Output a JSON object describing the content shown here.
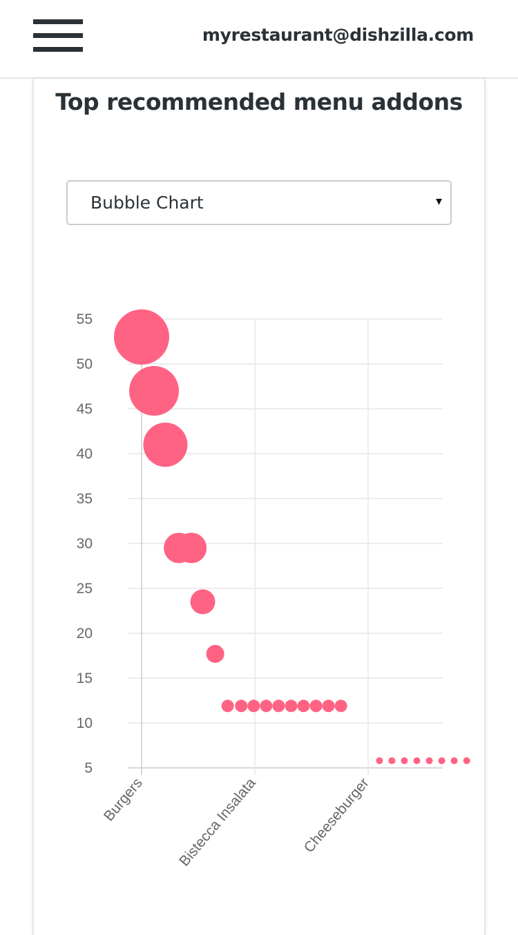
{
  "header": {
    "menu_icon": "hamburger-menu-icon",
    "email": "myrestaurant@dishzilla.com"
  },
  "card": {
    "title": "Top recommended menu addons"
  },
  "chart_selector": {
    "selected": "Bubble Chart",
    "arrow": "▾"
  },
  "colors": {
    "bubble": "#ff6384",
    "grid": "#e5e5e5",
    "text": "#2a3238"
  },
  "chart_data": {
    "type": "scatter",
    "title": "",
    "xlabel": "",
    "ylabel": "",
    "x_ticks": [
      "Burgers",
      "Bistecca Insalata",
      "Cheeseburger"
    ],
    "ylim": [
      5,
      55
    ],
    "y_ticks": [
      5,
      10,
      15,
      20,
      25,
      30,
      35,
      40,
      45,
      50,
      55
    ],
    "grid": true,
    "legend": "none",
    "series": [
      {
        "points": [
          {
            "x": 0.0,
            "y": 53,
            "r": 40
          },
          {
            "x": 0.11,
            "y": 47,
            "r": 36
          },
          {
            "x": 0.21,
            "y": 41,
            "r": 32
          },
          {
            "x": 0.33,
            "y": 29.5,
            "r": 22
          },
          {
            "x": 0.44,
            "y": 29.5,
            "r": 22
          },
          {
            "x": 0.54,
            "y": 23.5,
            "r": 18
          },
          {
            "x": 0.65,
            "y": 17.7,
            "r": 13
          },
          {
            "x": 0.76,
            "y": 11.9,
            "r": 9
          },
          {
            "x": 0.88,
            "y": 11.9,
            "r": 9
          },
          {
            "x": 0.99,
            "y": 11.9,
            "r": 9
          },
          {
            "x": 1.1,
            "y": 11.9,
            "r": 9
          },
          {
            "x": 1.21,
            "y": 11.9,
            "r": 9
          },
          {
            "x": 1.32,
            "y": 11.9,
            "r": 9
          },
          {
            "x": 1.43,
            "y": 11.9,
            "r": 9
          },
          {
            "x": 1.54,
            "y": 11.9,
            "r": 9
          },
          {
            "x": 1.65,
            "y": 11.9,
            "r": 9
          },
          {
            "x": 1.76,
            "y": 11.9,
            "r": 9
          },
          {
            "x": 2.1,
            "y": 5.8,
            "r": 5
          },
          {
            "x": 2.21,
            "y": 5.8,
            "r": 5
          },
          {
            "x": 2.32,
            "y": 5.8,
            "r": 5
          },
          {
            "x": 2.43,
            "y": 5.8,
            "r": 5
          },
          {
            "x": 2.54,
            "y": 5.8,
            "r": 5
          },
          {
            "x": 2.65,
            "y": 5.8,
            "r": 5
          },
          {
            "x": 2.76,
            "y": 5.8,
            "r": 5
          },
          {
            "x": 2.87,
            "y": 5.8,
            "r": 5
          }
        ]
      }
    ]
  }
}
